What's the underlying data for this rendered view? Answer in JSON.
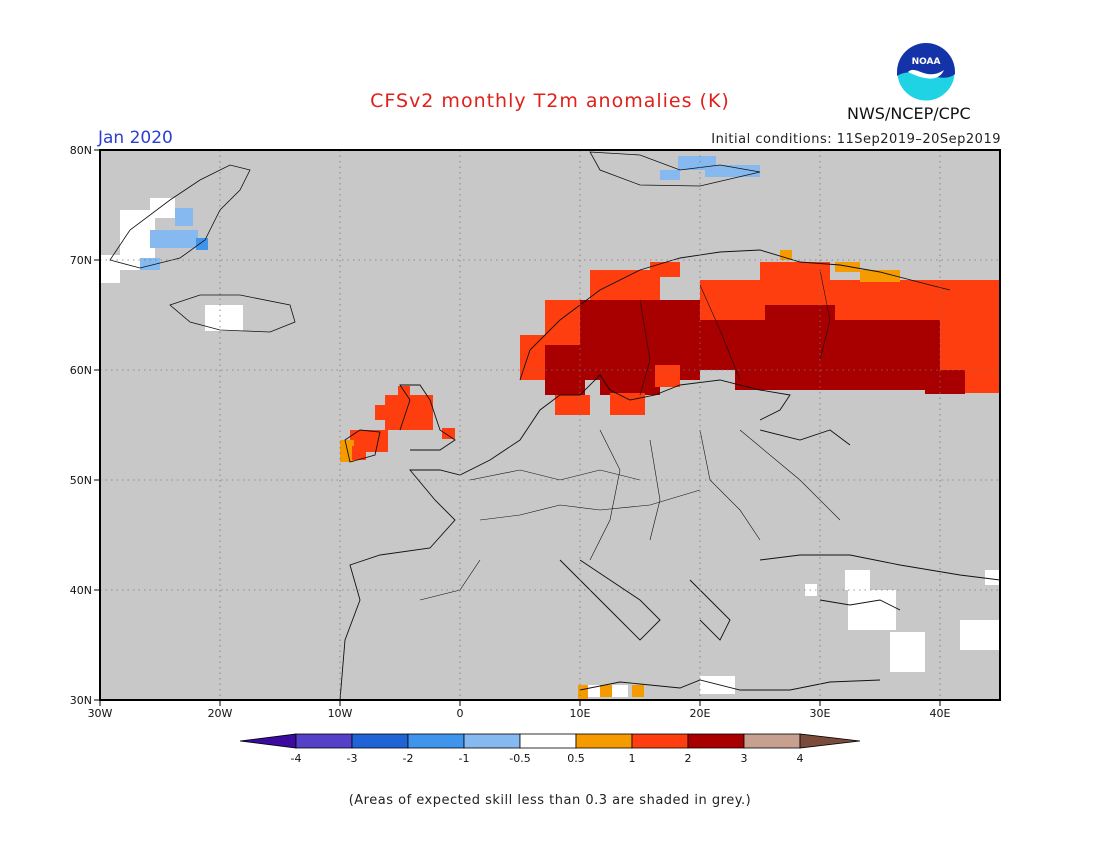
{
  "title": "CFSv2 monthly T2m anomalies (K)",
  "month": "Jan 2020",
  "initial_conditions": "Initial conditions: 11Sep2019–20Sep2019",
  "agency": "NWS/NCEP/CPC",
  "logo_text": "NOAA",
  "footnote": "(Areas of expected skill less than 0.3 are shaded in grey.)",
  "map": {
    "lon_labels": [
      "30W",
      "20W",
      "10W",
      "0",
      "10E",
      "20E",
      "30E",
      "40E"
    ],
    "lat_labels": [
      "80N",
      "70N",
      "60N",
      "50N",
      "40N",
      "30N"
    ],
    "ocean_color": "#c8c8c8"
  },
  "colorbar": {
    "labels": [
      "-4",
      "-3",
      "-2",
      "-1",
      "-0.5",
      "0.5",
      "1",
      "2",
      "3",
      "4"
    ],
    "colors": [
      "#3a0b9e",
      "#5540c8",
      "#1f63d6",
      "#3f95ec",
      "#85b9f0",
      "#ffffff",
      "#f59b00",
      "#ff3e10",
      "#a80000",
      "#c8a090",
      "#7a4a3a"
    ]
  }
}
